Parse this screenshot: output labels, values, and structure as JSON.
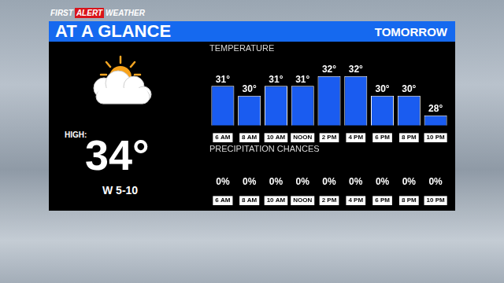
{
  "header": {
    "brand": [
      "FIRST",
      "ALERT",
      "WEATHER"
    ],
    "title": "AT A GLANCE",
    "period": "TOMORROW"
  },
  "summary": {
    "high_label": "HIGH:",
    "high": "34°",
    "wind": "W 5-10"
  },
  "chart_data": [
    {
      "type": "bar",
      "title": "TEMPERATURE",
      "categories": [
        "6 AM",
        "8 AM",
        "10 AM",
        "NOON",
        "2 PM",
        "4 PM",
        "6 PM",
        "8 PM",
        "10 PM"
      ],
      "values": [
        31,
        30,
        31,
        31,
        32,
        32,
        30,
        30,
        28
      ],
      "value_labels": [
        "31°",
        "30°",
        "31°",
        "31°",
        "32°",
        "32°",
        "30°",
        "30°",
        "28°"
      ],
      "color": "#1a5cf0",
      "ylim": [
        27,
        33
      ],
      "data_labels": true,
      "tick_labels": "x",
      "grid": false
    },
    {
      "type": "bar",
      "title": "PRECIPITATION CHANCES",
      "categories": [
        "6 AM",
        "8 AM",
        "10 AM",
        "NOON",
        "2 PM",
        "4 PM",
        "6 PM",
        "8 PM",
        "10 PM"
      ],
      "values": [
        0,
        0,
        0,
        0,
        0,
        0,
        0,
        0,
        0
      ],
      "value_labels": [
        "0%",
        "0%",
        "0%",
        "0%",
        "0%",
        "0%",
        "0%",
        "0%",
        "0%"
      ],
      "color": "#1a5cf0",
      "ylim": [
        0,
        100
      ],
      "data_labels": true,
      "tick_labels": "x",
      "grid": false
    }
  ]
}
